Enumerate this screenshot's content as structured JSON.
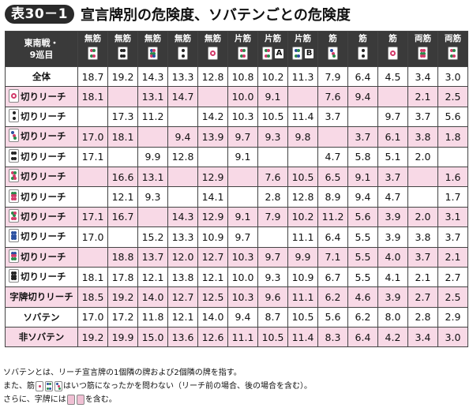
{
  "title": {
    "badge": "表30－1",
    "text": "宣言牌別の危険度、ソバテンごとの危険度"
  },
  "colors": {
    "header_bg": "#3a3a3a",
    "pink_row": "#f8d9e6",
    "tile_red": "#d23a6a",
    "tile_blue": "#2a4fa0",
    "tile_green": "#2a8a4a",
    "tile_black": "#222222"
  },
  "header": {
    "corner": "東南戦・\n9巡目",
    "columns": [
      {
        "label": "無筋",
        "tile": "pin-1"
      },
      {
        "label": "無筋",
        "tile": "pin-2"
      },
      {
        "label": "無筋",
        "tile": "pin-3"
      },
      {
        "label": "無筋",
        "tile": "pin-4"
      },
      {
        "label": "無筋",
        "tile": "pin-5"
      },
      {
        "label": "片筋",
        "tile": "pin-6"
      },
      {
        "label": "片筋",
        "tile": "pin-7",
        "suffix": "A"
      },
      {
        "label": "片筋",
        "tile": "pin-8",
        "suffix": "B"
      },
      {
        "label": "筋",
        "tile": "pin-9"
      },
      {
        "label": "筋",
        "tile": "pin-10"
      },
      {
        "label": "筋",
        "tile": "pin-11"
      },
      {
        "label": "両筋",
        "tile": "pin-12"
      },
      {
        "label": "両筋",
        "tile": "pin-13"
      }
    ]
  },
  "rows": [
    {
      "label": "全体",
      "tile": "",
      "pink": false,
      "center": true,
      "cells": [
        "18.7",
        "19.2",
        "14.3",
        "13.3",
        "12.8",
        "10.8",
        "10.2",
        "11.3",
        "7.9",
        "6.4",
        "4.5",
        "3.4",
        "3.0"
      ]
    },
    {
      "label": "切りリーチ",
      "tile": "pin-1-circle",
      "pink": true,
      "center": false,
      "cells": [
        "18.1",
        "",
        "13.1",
        "14.7",
        "",
        "10.0",
        "9.1",
        "",
        "7.6",
        "9.4",
        "",
        "2.1",
        "2.5"
      ]
    },
    {
      "label": "切りリーチ",
      "tile": "pin-2",
      "pink": false,
      "center": false,
      "cells": [
        "",
        "17.3",
        "11.2",
        "",
        "14.2",
        "10.3",
        "10.5",
        "11.4",
        "3.7",
        "",
        "9.7",
        "3.7",
        "5.6"
      ]
    },
    {
      "label": "切りリーチ",
      "tile": "pin-3",
      "pink": true,
      "center": false,
      "cells": [
        "17.0",
        "18.1",
        "",
        "9.4",
        "13.9",
        "9.7",
        "9.3",
        "9.8",
        "",
        "3.7",
        "6.1",
        "3.8",
        "1.8"
      ]
    },
    {
      "label": "切りリーチ",
      "tile": "pin-4",
      "pink": false,
      "center": false,
      "cells": [
        "17.1",
        "",
        "9.9",
        "12.8",
        "",
        "9.1",
        "",
        "",
        "4.7",
        "5.8",
        "5.1",
        "2.0",
        ""
      ]
    },
    {
      "label": "切りリーチ",
      "tile": "pin-5",
      "pink": true,
      "center": false,
      "cells": [
        "",
        "16.6",
        "13.1",
        "",
        "12.9",
        "",
        "7.6",
        "10.5",
        "6.5",
        "9.1",
        "3.7",
        "",
        "1.6"
      ]
    },
    {
      "label": "切りリーチ",
      "tile": "pin-6",
      "pink": false,
      "center": false,
      "cells": [
        "",
        "12.1",
        "9.3",
        "",
        "14.1",
        "",
        "2.8",
        "12.8",
        "8.9",
        "9.4",
        "4.7",
        "",
        "1.7"
      ]
    },
    {
      "label": "切りリーチ",
      "tile": "pin-7",
      "pink": true,
      "center": false,
      "cells": [
        "17.1",
        "16.7",
        "",
        "14.3",
        "12.9",
        "9.1",
        "7.9",
        "10.2",
        "11.2",
        "5.6",
        "3.9",
        "2.0",
        "3.1"
      ]
    },
    {
      "label": "切りリーチ",
      "tile": "pin-8",
      "pink": false,
      "center": false,
      "cells": [
        "17.0",
        "",
        "15.2",
        "13.3",
        "10.9",
        "9.7",
        "",
        "11.1",
        "6.4",
        "5.5",
        "3.9",
        "3.8",
        "3.7"
      ]
    },
    {
      "label": "切りリーチ",
      "tile": "pin-9",
      "pink": true,
      "center": false,
      "cells": [
        "",
        "18.8",
        "13.7",
        "12.0",
        "12.7",
        "10.3",
        "9.7",
        "9.9",
        "7.1",
        "5.5",
        "4.0",
        "3.7",
        "2.1"
      ]
    },
    {
      "label": "切りリーチ",
      "tile": "pin-10",
      "pink": false,
      "center": false,
      "cells": [
        "18.1",
        "17.8",
        "12.1",
        "13.8",
        "12.1",
        "10.0",
        "9.3",
        "10.9",
        "6.7",
        "5.5",
        "4.1",
        "2.1",
        "2.7"
      ]
    },
    {
      "label": "字牌切りリーチ",
      "tile": "",
      "pink": true,
      "center": true,
      "cells": [
        "18.5",
        "19.2",
        "14.0",
        "12.7",
        "12.5",
        "10.3",
        "9.6",
        "11.1",
        "6.2",
        "4.6",
        "3.9",
        "2.7",
        "2.5"
      ]
    },
    {
      "label": "ソバテン",
      "tile": "",
      "pink": false,
      "center": true,
      "cells": [
        "17.0",
        "17.2",
        "11.8",
        "12.1",
        "14.0",
        "9.4",
        "8.7",
        "10.5",
        "5.6",
        "6.2",
        "8.0",
        "2.8",
        "2.9"
      ]
    },
    {
      "label": "非ソバテン",
      "tile": "",
      "pink": true,
      "center": true,
      "cells": [
        "19.2",
        "19.9",
        "15.0",
        "13.6",
        "12.6",
        "11.1",
        "10.5",
        "11.4",
        "8.3",
        "6.4",
        "4.2",
        "3.4",
        "3.0"
      ]
    }
  ],
  "notes": {
    "line1": "ソバテンとは、リーチ宣言牌の1個隣の牌および2個隣の牌を指す。",
    "line2a": "また、筋",
    "line2b": "はいつ筋になったかを問わない（リーチ前の場合、後の場合を含む）。",
    "line3a": "さらに、字牌には",
    "line3b": "を含む。"
  }
}
